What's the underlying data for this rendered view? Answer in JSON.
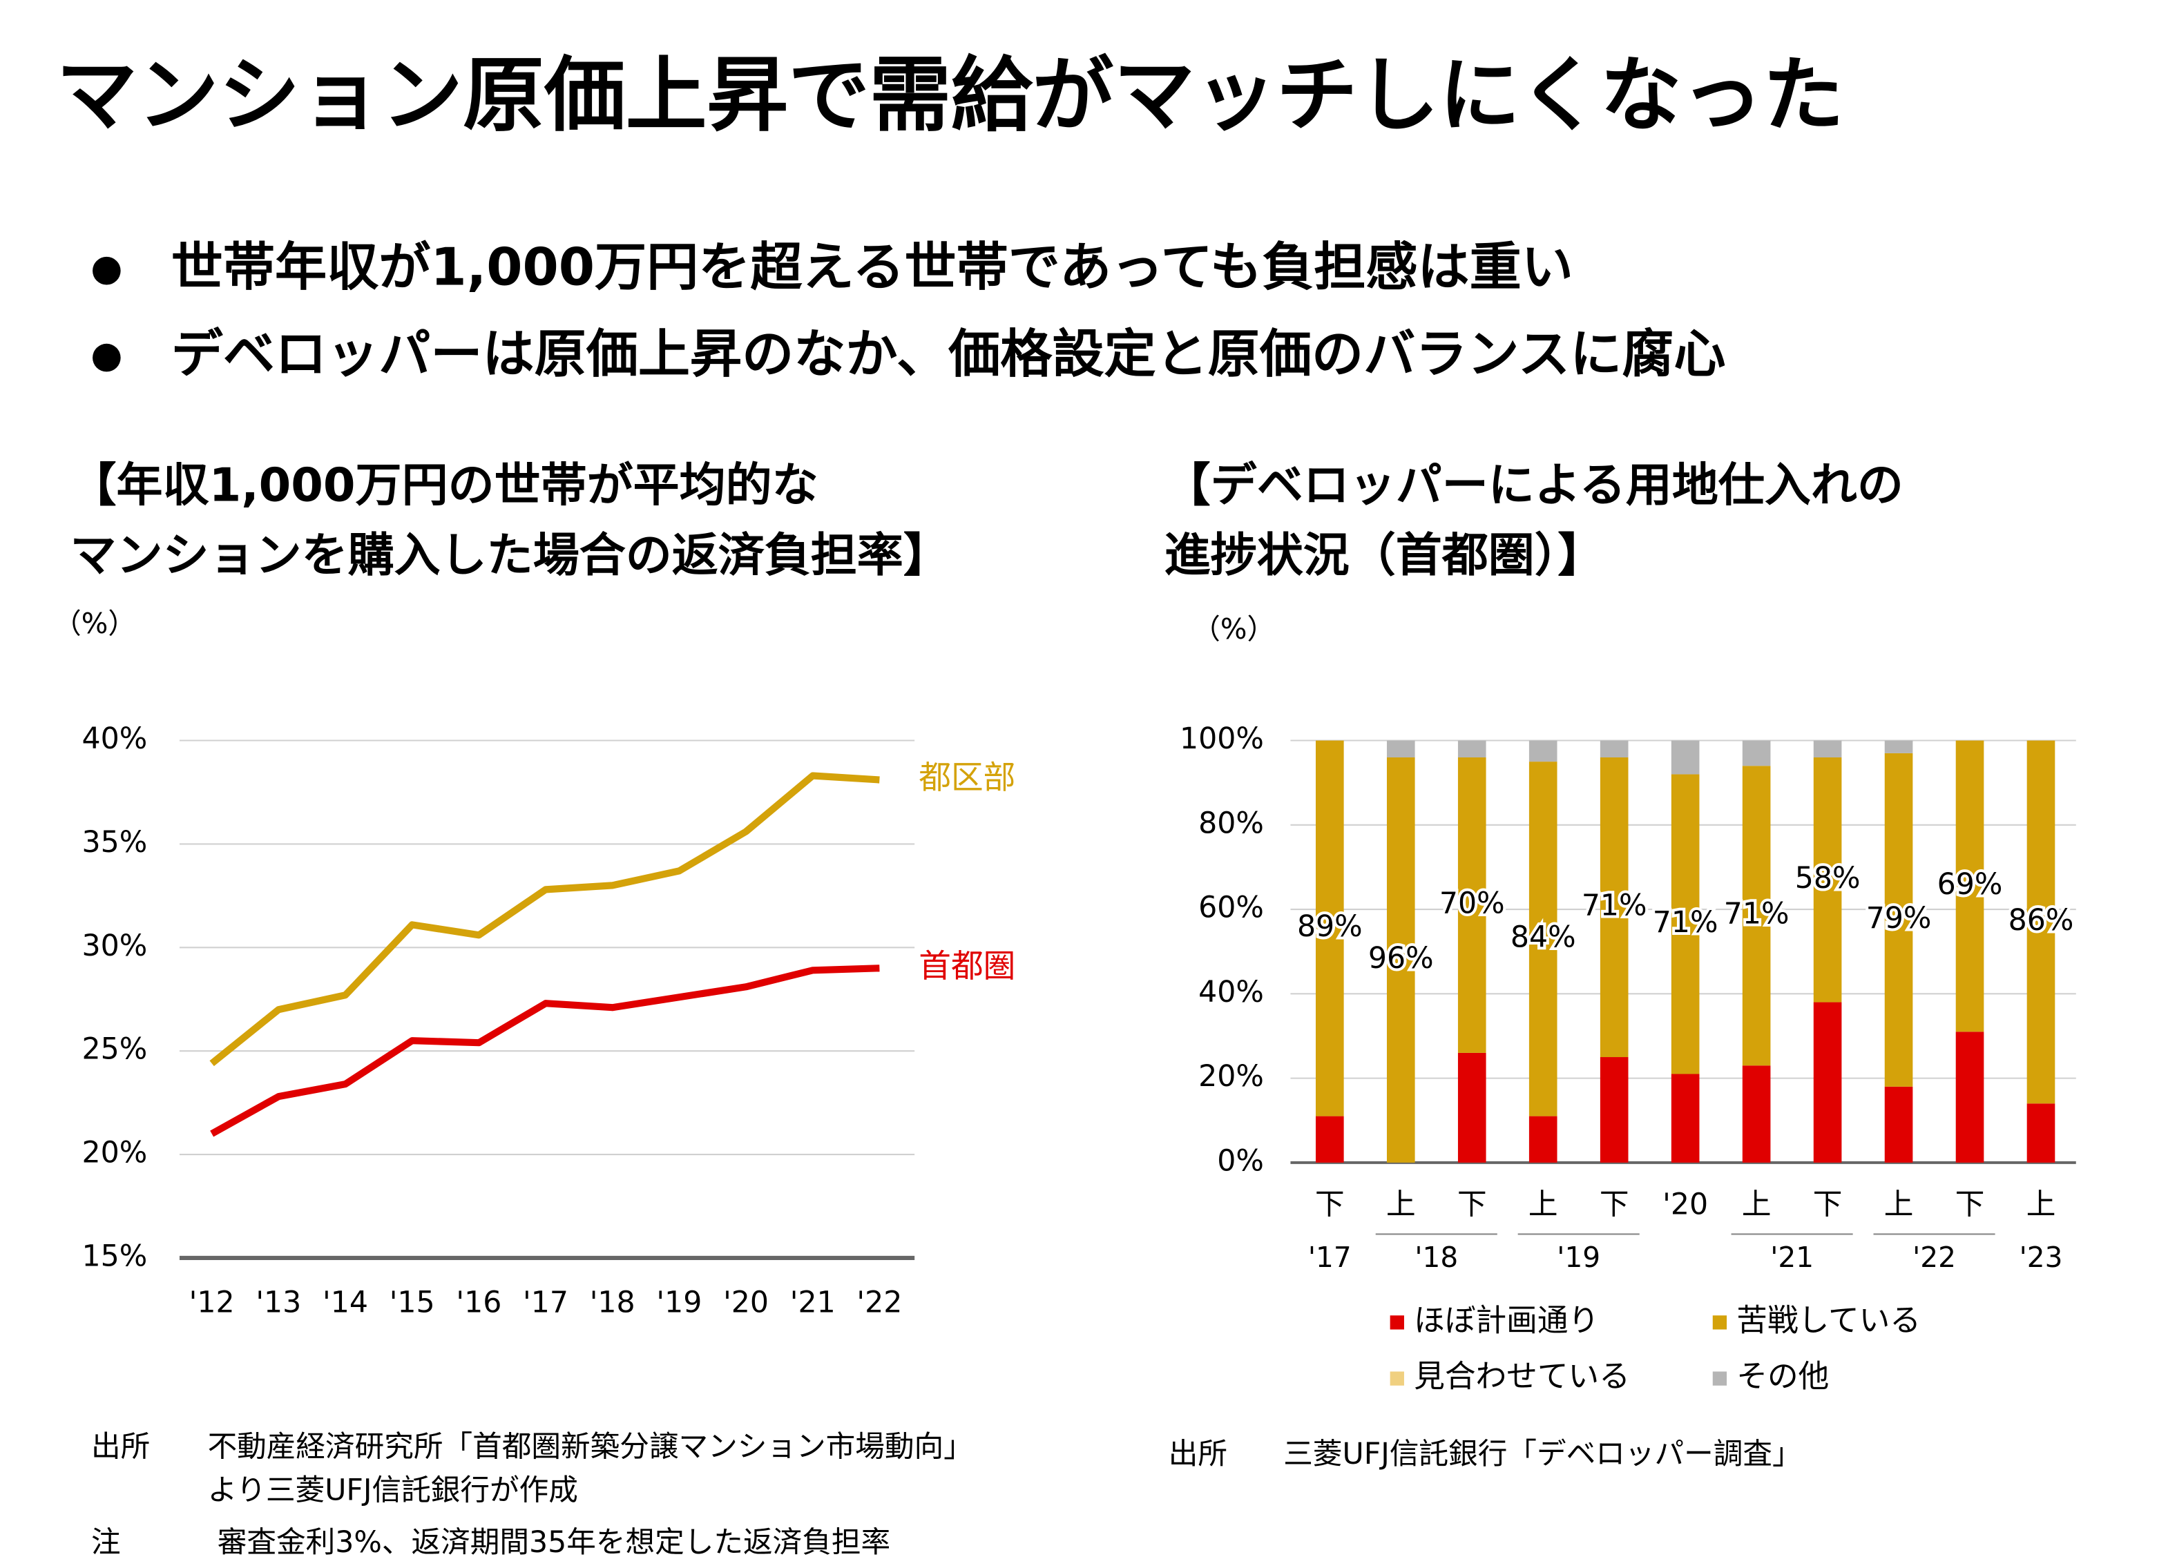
{
  "header": {
    "title": "マンション原価上昇で需給がマッチしにくなった",
    "bullets": [
      "世帯年収が1,000万円を超える世帯であっても負担感は重い",
      "デベロッパーは原価上昇のなか、価格設定と原価のバランスに腐心"
    ]
  },
  "chart_data": [
    {
      "type": "line",
      "title_lines": [
        "【年収1,000万円の世帯が平均的な",
        "マンションを購入した場合の返済負担率】"
      ],
      "unit": "（%）",
      "categories": [
        "'12",
        "'13",
        "'14",
        "'15",
        "'16",
        "'17",
        "'18",
        "'19",
        "'20",
        "'21",
        "'22"
      ],
      "series": [
        {
          "name": "都区部",
          "color": "#D4A20A",
          "values": [
            24.4,
            27.0,
            27.7,
            31.1,
            30.6,
            32.8,
            33.0,
            33.7,
            35.6,
            38.3,
            38.1
          ]
        },
        {
          "name": "首都圏",
          "color": "#E00000",
          "values": [
            21.0,
            22.8,
            23.4,
            25.5,
            25.4,
            27.3,
            27.1,
            27.6,
            28.1,
            28.9,
            29.0
          ]
        }
      ],
      "ylim": [
        15,
        40
      ],
      "yticks": [
        {
          "value": 15,
          "label": "15%"
        },
        {
          "value": 20,
          "label": "20%"
        },
        {
          "value": 25,
          "label": "25%"
        },
        {
          "value": 30,
          "label": "30%"
        },
        {
          "value": 35,
          "label": "35%"
        },
        {
          "value": 40,
          "label": "40%"
        }
      ],
      "grid": true
    },
    {
      "type": "stacked_bar",
      "title_lines": [
        "【デベロッパーによる用地仕入れの",
        "進捗状況（首都圏）】"
      ],
      "unit": "（%）",
      "categories": [
        "下",
        "上",
        "下",
        "上",
        "下",
        "'20",
        "上",
        "下",
        "上",
        "下",
        "上"
      ],
      "groups": [
        {
          "label": "'17",
          "from": 0,
          "to": 0
        },
        {
          "label": "'18",
          "from": 1,
          "to": 2
        },
        {
          "label": "'19",
          "from": 3,
          "to": 4
        },
        {
          "label": "'21",
          "from": 6,
          "to": 7
        },
        {
          "label": "'22",
          "from": 8,
          "to": 9
        },
        {
          "label": "'23",
          "from": 10,
          "to": 10
        }
      ],
      "series": [
        {
          "name": "ほぼ計画通り",
          "color": "#E00000",
          "values": [
            11,
            0,
            26,
            11,
            25,
            21,
            23,
            38,
            18,
            31,
            14
          ]
        },
        {
          "name": "苦戦している",
          "color": "#D4A20A",
          "values": [
            89,
            96,
            70,
            84,
            71,
            71,
            71,
            58,
            79,
            69,
            86
          ],
          "value_labels": [
            "89%",
            "96%",
            "70%",
            "84%",
            "71%",
            "71%",
            "71%",
            "58%",
            "79%",
            "69%",
            "86%"
          ]
        },
        {
          "name": "見合わせている",
          "color": "#F0D080",
          "values": [
            0,
            0,
            0,
            0,
            0,
            0,
            0,
            0,
            0,
            0,
            0
          ]
        },
        {
          "name": "その他",
          "color": "#B5B5B5",
          "values": [
            0,
            4,
            4,
            5,
            4,
            8,
            6,
            4,
            3,
            0,
            0
          ]
        }
      ],
      "ylim": [
        0,
        100
      ],
      "yticks": [
        {
          "value": 0,
          "label": "0%"
        },
        {
          "value": 20,
          "label": "20%"
        },
        {
          "value": 40,
          "label": "40%"
        },
        {
          "value": 60,
          "label": "60%"
        },
        {
          "value": 80,
          "label": "80%"
        },
        {
          "value": 100,
          "label": "100%"
        }
      ],
      "grid": true
    }
  ],
  "notes": {
    "left_source_label": "出所",
    "left_source": [
      "不動産経済研究所「首都圏新築分譲マンション市場動向」",
      "より三菱UFJ信託銀行が作成"
    ],
    "left_note_label": "注",
    "left_note": "審査金利3%、返済期間35年を想定した返済負担率",
    "right_source_label": "出所",
    "right_source": "三菱UFJ信託銀行「デベロッパー調査」"
  }
}
